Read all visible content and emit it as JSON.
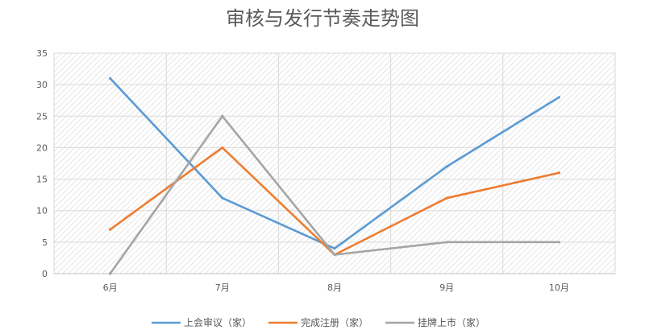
{
  "chart_data": {
    "type": "line",
    "title": "审核与发行节奏走势图",
    "categories": [
      "6月",
      "7月",
      "8月",
      "9月",
      "10月"
    ],
    "ylim": [
      0,
      35
    ],
    "yticks": [
      0,
      5,
      10,
      15,
      20,
      25,
      30,
      35
    ],
    "grid": true,
    "legend_position": "bottom",
    "series": [
      {
        "name": "上会审议（家）",
        "values": [
          31,
          12,
          4,
          17,
          28
        ],
        "color": "#5b9bd5"
      },
      {
        "name": "完成注册（家）",
        "values": [
          7,
          20,
          3,
          12,
          16
        ],
        "color": "#ed7d31"
      },
      {
        "name": "挂牌上市（家）",
        "values": [
          0,
          25,
          3,
          5,
          5
        ],
        "color": "#a5a5a5"
      }
    ]
  }
}
